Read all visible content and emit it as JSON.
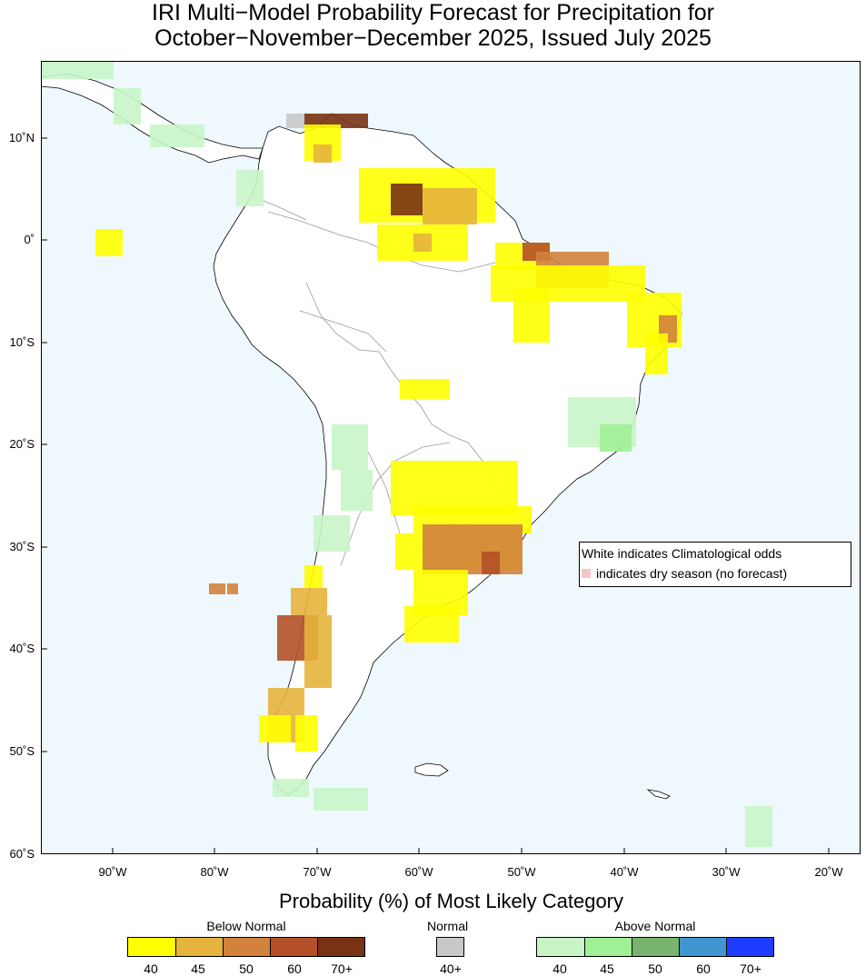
{
  "title": {
    "line1": "IRI Multi−Model Probability Forecast for Precipitation for",
    "line2": "October−November−December 2025, Issued July 2025"
  },
  "map": {
    "ocean_color": "#eff8fd",
    "land_color": "#ffffff",
    "lon_labels": [
      "90˚W",
      "80˚W",
      "70˚W",
      "60˚W",
      "50˚W",
      "40˚W",
      "30˚W",
      "20˚W"
    ],
    "lat_labels": [
      "10˚N",
      "0˚",
      "10˚S",
      "20˚S",
      "30˚S",
      "40˚S",
      "50˚S",
      "60˚S"
    ]
  },
  "info": {
    "line1": "White indicates Climatological odds",
    "line2": "indicates dry season (no forecast)",
    "dry_color": "#f5c6c6"
  },
  "legend": {
    "title": "Probability (%) of Most Likely Category",
    "below": {
      "label": "Below Normal",
      "ticks": [
        "40",
        "45",
        "50",
        "60",
        "70+"
      ],
      "colors": [
        "#ffff00",
        "#e6b43c",
        "#d2823c",
        "#b45028",
        "#783214"
      ]
    },
    "normal": {
      "label": "Normal",
      "ticks": [
        "40+"
      ],
      "colors": [
        "#c8c8c8"
      ]
    },
    "above": {
      "label": "Above Normal",
      "ticks": [
        "40",
        "45",
        "50",
        "60",
        "70+"
      ],
      "colors": [
        "#c8f5c8",
        "#a0f096",
        "#78b46e",
        "#4196d2",
        "#1e3cff"
      ]
    }
  }
}
